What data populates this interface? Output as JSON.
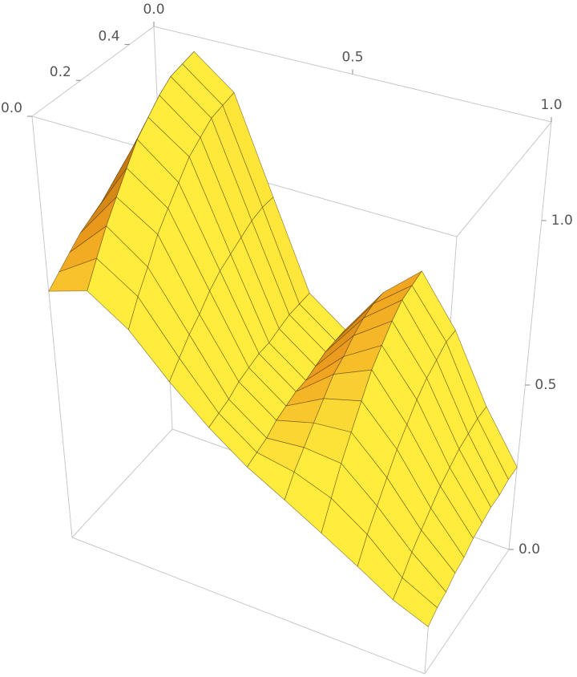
{
  "chart_data": {
    "type": "surface",
    "x": [
      0,
      0.1,
      0.2,
      0.3,
      0.4,
      0.5,
      0.6,
      0.7,
      0.8,
      0.9,
      1
    ],
    "y": [
      0,
      0.05,
      0.1,
      0.15,
      0.2,
      0.25,
      0.3,
      0.35,
      0.4,
      0.45,
      0.5
    ],
    "z": [
      [
        0.76,
        0.8,
        0.72,
        0.6,
        0.5,
        0.42,
        0.36,
        0.3,
        0.24,
        0.18,
        0.14
      ],
      [
        0.79,
        0.87,
        0.79,
        0.64,
        0.51,
        0.43,
        0.41,
        0.37,
        0.3,
        0.21,
        0.16
      ],
      [
        0.82,
        0.94,
        0.85,
        0.68,
        0.52,
        0.44,
        0.45,
        0.44,
        0.35,
        0.25,
        0.17
      ],
      [
        0.85,
        1.0,
        0.92,
        0.71,
        0.54,
        0.46,
        0.49,
        0.5,
        0.4,
        0.28,
        0.19
      ],
      [
        0.87,
        1.06,
        0.97,
        0.75,
        0.55,
        0.47,
        0.53,
        0.56,
        0.45,
        0.31,
        0.2
      ],
      [
        0.89,
        1.12,
        1.02,
        0.78,
        0.56,
        0.48,
        0.57,
        0.62,
        0.49,
        0.34,
        0.22
      ],
      [
        0.91,
        1.16,
        1.07,
        0.8,
        0.56,
        0.48,
        0.59,
        0.66,
        0.53,
        0.36,
        0.23
      ],
      [
        0.93,
        1.2,
        1.1,
        0.82,
        0.57,
        0.49,
        0.62,
        0.7,
        0.56,
        0.38,
        0.24
      ],
      [
        0.94,
        1.23,
        1.13,
        0.84,
        0.58,
        0.5,
        0.64,
        0.73,
        0.58,
        0.39,
        0.24
      ],
      [
        0.95,
        1.24,
        1.14,
        0.85,
        0.58,
        0.5,
        0.65,
        0.74,
        0.6,
        0.4,
        0.25
      ],
      [
        0.95,
        1.25,
        1.15,
        0.85,
        0.58,
        0.5,
        0.65,
        0.75,
        0.6,
        0.4,
        0.25
      ]
    ],
    "xlim": [
      0,
      1
    ],
    "ylim": [
      0,
      0.5
    ],
    "zlim": [
      0,
      1.3
    ],
    "xticks": [
      {
        "value": 0,
        "label": "0.0"
      },
      {
        "value": 0.5,
        "label": "0.5"
      },
      {
        "value": 1,
        "label": "1.0"
      }
    ],
    "yticks": [
      {
        "value": 0,
        "label": "0.0"
      },
      {
        "value": 0.2,
        "label": "0.2"
      },
      {
        "value": 0.4,
        "label": "0.4"
      }
    ],
    "zticks": [
      {
        "value": 0,
        "label": "0.0"
      },
      {
        "value": 0.5,
        "label": "0.5"
      },
      {
        "value": 1,
        "label": "1.0"
      }
    ],
    "mesh": true
  }
}
